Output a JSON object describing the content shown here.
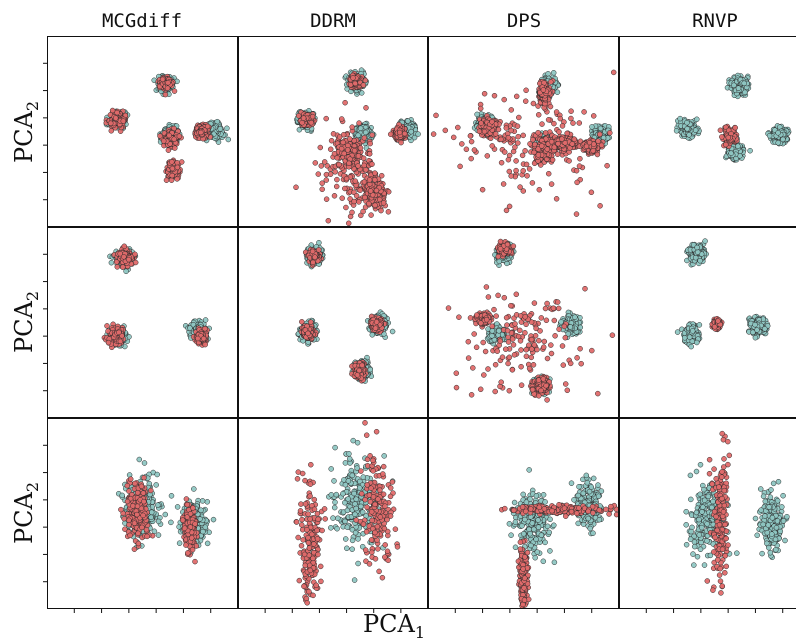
{
  "chart_data": {
    "type": "scatter",
    "columns": [
      "MCGdiff",
      "DDRM",
      "DPS",
      "RNVP"
    ],
    "xlabel": "PCA",
    "xlabel_sub": "1",
    "ylabel": "PCA",
    "ylabel_sub": "2",
    "grid": false,
    "colors": {
      "prior": "#8fc7c3",
      "posterior": "#e06a6a",
      "edge": "#2b2b2b"
    },
    "panels": [
      {
        "row": 0,
        "col": 0,
        "prior": [
          [
            0.37,
            0.44,
            0.02,
            0.02
          ],
          [
            0.62,
            0.25,
            0.02,
            0.02
          ],
          [
            0.64,
            0.52,
            0.02,
            0.02
          ],
          [
            0.87,
            0.5,
            0.025,
            0.02
          ]
        ],
        "posterior": [
          [
            0.37,
            0.44,
            0.02,
            0.02
          ],
          [
            0.62,
            0.25,
            0.015,
            0.015
          ],
          [
            0.65,
            0.54,
            0.02,
            0.02
          ],
          [
            0.66,
            0.7,
            0.015,
            0.02
          ],
          [
            0.81,
            0.5,
            0.015,
            0.015
          ]
        ],
        "posterior_scatter": null
      },
      {
        "row": 0,
        "col": 1,
        "prior": [
          [
            0.36,
            0.44,
            0.02,
            0.02
          ],
          [
            0.62,
            0.24,
            0.02,
            0.02
          ],
          [
            0.89,
            0.49,
            0.02,
            0.02
          ],
          [
            0.66,
            0.51,
            0.02,
            0.02
          ]
        ],
        "posterior": [
          [
            0.36,
            0.44,
            0.015,
            0.015
          ],
          [
            0.62,
            0.24,
            0.015,
            0.015
          ],
          [
            0.85,
            0.51,
            0.015,
            0.015
          ],
          [
            0.58,
            0.6,
            0.03,
            0.03
          ],
          [
            0.72,
            0.82,
            0.025,
            0.04
          ]
        ],
        "posterior_scatter": [
          0.6,
          0.7,
          0.08,
          0.12
        ]
      },
      {
        "row": 0,
        "col": 2,
        "prior": [
          [
            0.3,
            0.46,
            0.02,
            0.02
          ],
          [
            0.63,
            0.26,
            0.02,
            0.02
          ],
          [
            0.9,
            0.52,
            0.02,
            0.02
          ],
          [
            0.62,
            0.56,
            0.02,
            0.02
          ]
        ],
        "posterior": [
          [
            0.32,
            0.48,
            0.02,
            0.02
          ],
          [
            0.61,
            0.3,
            0.015,
            0.03
          ],
          [
            0.61,
            0.6,
            0.025,
            0.03
          ],
          [
            0.72,
            0.56,
            0.03,
            0.02
          ],
          [
            0.86,
            0.58,
            0.02,
            0.015
          ]
        ],
        "posterior_scatter": [
          0.55,
          0.55,
          0.18,
          0.14
        ]
      },
      {
        "row": 0,
        "col": 3,
        "prior": [
          [
            0.36,
            0.49,
            0.02,
            0.02
          ],
          [
            0.63,
            0.26,
            0.02,
            0.02
          ],
          [
            0.84,
            0.52,
            0.02,
            0.02
          ],
          [
            0.61,
            0.6,
            0.02,
            0.02
          ]
        ],
        "posterior": [
          [
            0.58,
            0.53,
            0.015,
            0.02
          ]
        ],
        "posterior_scatter": null
      },
      {
        "row": 1,
        "col": 0,
        "prior": [
          [
            0.4,
            0.16,
            0.02,
            0.02
          ],
          [
            0.37,
            0.57,
            0.02,
            0.02
          ],
          [
            0.79,
            0.54,
            0.02,
            0.02
          ]
        ],
        "posterior": [
          [
            0.41,
            0.16,
            0.02,
            0.02
          ],
          [
            0.36,
            0.57,
            0.02,
            0.02
          ],
          [
            0.81,
            0.57,
            0.015,
            0.015
          ]
        ],
        "posterior_scatter": null
      },
      {
        "row": 1,
        "col": 1,
        "prior": [
          [
            0.4,
            0.15,
            0.02,
            0.02
          ],
          [
            0.37,
            0.55,
            0.02,
            0.02
          ],
          [
            0.74,
            0.51,
            0.02,
            0.02
          ],
          [
            0.65,
            0.75,
            0.02,
            0.02
          ]
        ],
        "posterior": [
          [
            0.4,
            0.15,
            0.015,
            0.015
          ],
          [
            0.37,
            0.55,
            0.015,
            0.015
          ],
          [
            0.73,
            0.51,
            0.015,
            0.015
          ],
          [
            0.64,
            0.75,
            0.015,
            0.02
          ]
        ],
        "posterior_scatter": null
      },
      {
        "row": 1,
        "col": 2,
        "prior": [
          [
            0.4,
            0.14,
            0.02,
            0.02
          ],
          [
            0.36,
            0.56,
            0.02,
            0.02
          ],
          [
            0.75,
            0.51,
            0.02,
            0.02
          ],
          [
            0.59,
            0.83,
            0.02,
            0.02
          ]
        ],
        "posterior": [
          [
            0.4,
            0.12,
            0.015,
            0.015
          ],
          [
            0.29,
            0.48,
            0.02,
            0.015
          ],
          [
            0.59,
            0.83,
            0.02,
            0.02
          ]
        ],
        "posterior_scatter": [
          0.5,
          0.6,
          0.16,
          0.14
        ]
      },
      {
        "row": 1,
        "col": 3,
        "prior": [
          [
            0.41,
            0.14,
            0.02,
            0.02
          ],
          [
            0.38,
            0.56,
            0.02,
            0.02
          ],
          [
            0.73,
            0.52,
            0.02,
            0.02
          ]
        ],
        "posterior": [
          [
            0.51,
            0.51,
            0.01,
            0.01
          ]
        ],
        "posterior_scatter": null
      },
      {
        "row": 2,
        "col": 0,
        "prior": [
          [
            0.5,
            0.47,
            0.05,
            0.08
          ],
          [
            0.77,
            0.55,
            0.03,
            0.06
          ]
        ],
        "posterior": [
          [
            0.47,
            0.49,
            0.03,
            0.08
          ],
          [
            0.75,
            0.58,
            0.015,
            0.06
          ]
        ],
        "posterior_scatter": null
      },
      {
        "row": 2,
        "col": 1,
        "prior": [
          [
            0.62,
            0.43,
            0.06,
            0.12
          ]
        ],
        "posterior": [
          [
            0.38,
            0.66,
            0.03,
            0.15
          ],
          [
            0.73,
            0.48,
            0.04,
            0.15
          ]
        ],
        "posterior_scatter": null
      },
      {
        "row": 2,
        "col": 2,
        "prior": [
          [
            0.55,
            0.54,
            0.05,
            0.08
          ],
          [
            0.84,
            0.45,
            0.03,
            0.06
          ]
        ],
        "posterior": [
          [
            0.7,
            0.48,
            0.14,
            0.012
          ],
          [
            0.5,
            0.83,
            0.01,
            0.08
          ]
        ],
        "posterior_scatter": null
      },
      {
        "row": 2,
        "col": 3,
        "prior": [
          [
            0.46,
            0.52,
            0.05,
            0.09
          ],
          [
            0.8,
            0.55,
            0.03,
            0.07
          ]
        ],
        "posterior": [
          [
            0.53,
            0.52,
            0.02,
            0.18
          ]
        ],
        "posterior_scatter": null
      }
    ]
  }
}
